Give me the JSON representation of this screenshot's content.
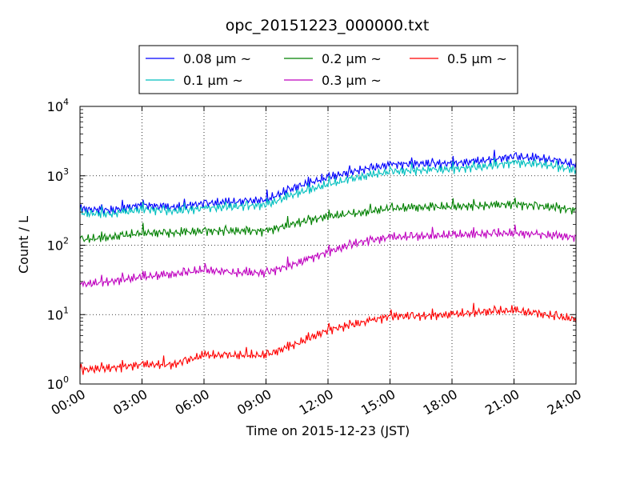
{
  "chart_data": {
    "type": "line",
    "title": "opc_20151223_000000.txt",
    "xlabel": "Time on 2015-12-23 (JST)",
    "ylabel": "Count / L",
    "y_scale": "log",
    "ylim": [
      1,
      10000
    ],
    "xlim": [
      "00:00",
      "24:00"
    ],
    "x_ticks": [
      "00:00",
      "03:00",
      "06:00",
      "09:00",
      "12:00",
      "15:00",
      "18:00",
      "21:00",
      "24:00"
    ],
    "y_ticks": [
      {
        "base": "10",
        "exp": "0",
        "value": 1
      },
      {
        "base": "10",
        "exp": "1",
        "value": 10
      },
      {
        "base": "10",
        "exp": "2",
        "value": 100
      },
      {
        "base": "10",
        "exp": "3",
        "value": 1000
      },
      {
        "base": "10",
        "exp": "4",
        "value": 10000
      }
    ],
    "grid": true,
    "legend_position": "top-center",
    "x_hours": [
      0,
      1.5,
      3,
      4.5,
      6,
      7.5,
      9,
      10.5,
      12,
      13.5,
      15,
      16.5,
      18,
      19.5,
      21,
      22.5,
      24
    ],
    "series": [
      {
        "name": "0.08 µm ~",
        "color": "#0000ff",
        "values": [
          330,
          320,
          380,
          350,
          400,
          420,
          450,
          700,
          950,
          1200,
          1450,
          1500,
          1500,
          1650,
          1900,
          1750,
          1450
        ]
      },
      {
        "name": "0.1 µm ~",
        "color": "#00bfbf",
        "values": [
          290,
          280,
          330,
          310,
          340,
          360,
          380,
          560,
          750,
          950,
          1150,
          1200,
          1250,
          1350,
          1550,
          1450,
          1200
        ]
      },
      {
        "name": "0.2 µm ~",
        "color": "#008000",
        "values": [
          120,
          130,
          150,
          150,
          160,
          160,
          160,
          210,
          260,
          290,
          340,
          350,
          360,
          370,
          390,
          360,
          320
        ]
      },
      {
        "name": "0.3 µm ~",
        "color": "#bf00bf",
        "values": [
          27,
          30,
          35,
          38,
          44,
          40,
          40,
          55,
          80,
          110,
          130,
          135,
          140,
          145,
          150,
          140,
          130
        ]
      },
      {
        "name": "0.5 µm ~",
        "color": "#ff0000",
        "values": [
          1.6,
          1.7,
          1.9,
          1.9,
          2.6,
          2.6,
          2.6,
          3.8,
          6.0,
          7.5,
          9.5,
          9.5,
          10.0,
          11.0,
          11.5,
          10.0,
          8.5
        ]
      }
    ]
  }
}
